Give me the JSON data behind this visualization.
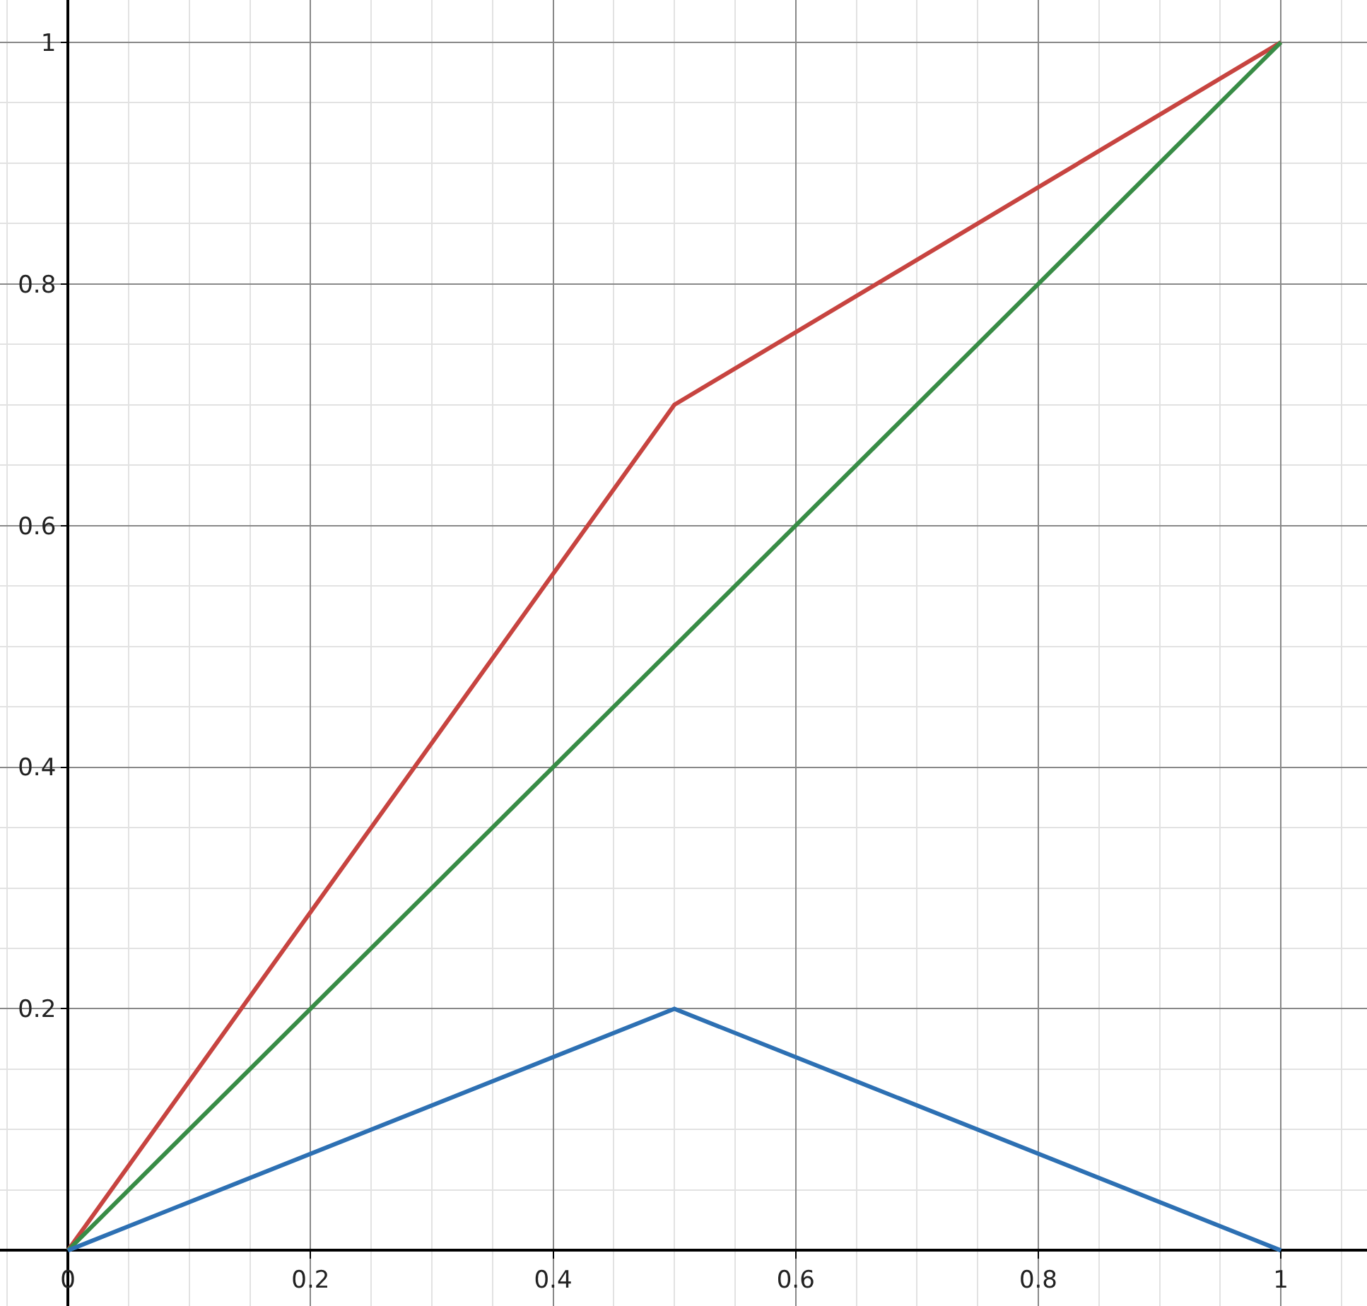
{
  "chart_data": {
    "type": "line",
    "series": [
      {
        "color": "#c74440",
        "x": [
          0,
          0.5,
          1
        ],
        "values": [
          0,
          0.7,
          1
        ]
      },
      {
        "color": "#388c46",
        "x": [
          0,
          1
        ],
        "values": [
          0,
          1
        ]
      },
      {
        "color": "#2d70b3",
        "x": [
          0,
          0.5,
          1
        ],
        "values": [
          0,
          0.2,
          0
        ]
      }
    ],
    "xlim": [
      -0.056,
      1.071
    ],
    "ylim": [
      -0.046,
      1.035
    ],
    "xticks": [
      0,
      0.2,
      0.4,
      0.6,
      0.8,
      1
    ],
    "yticks": [
      0.2,
      0.4,
      0.6,
      0.8,
      1
    ],
    "grid": true,
    "marker": "none",
    "line_style": "solid"
  }
}
